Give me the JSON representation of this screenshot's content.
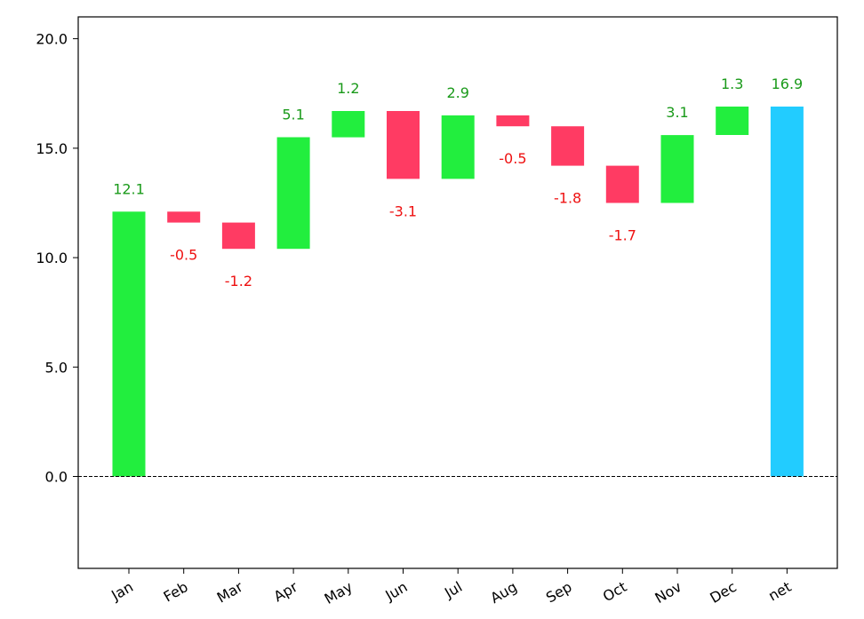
{
  "chart_data": {
    "type": "bar",
    "subtype": "waterfall",
    "title": "",
    "xlabel": "",
    "ylabel": "",
    "categories": [
      "Jan",
      "Feb",
      "Mar",
      "Apr",
      "May",
      "Jun",
      "Jul",
      "Aug",
      "Sep",
      "Oct",
      "Nov",
      "Dec",
      "net"
    ],
    "values": [
      12.1,
      -0.5,
      -1.2,
      5.1,
      1.2,
      -3.1,
      2.9,
      -0.5,
      -1.8,
      -1.7,
      3.1,
      1.3,
      16.9
    ],
    "labels": [
      "12.1",
      "-0.5",
      "-1.2",
      "5.1",
      "1.2",
      "-3.1",
      "2.9",
      "-0.5",
      "-1.8",
      "-1.7",
      "3.1",
      "1.3",
      "16.9"
    ],
    "total_index": 12,
    "ylim": [
      -4.2,
      21.0
    ],
    "yticks": [
      0.0,
      5.0,
      10.0,
      15.0,
      20.0
    ],
    "ytick_labels": [
      "0.0",
      "5.0",
      "10.0",
      "15.0",
      "20.0"
    ],
    "zero_line": "dashed",
    "grid": false,
    "legend": "none",
    "colors": {
      "increase": "#22ee3e",
      "decrease": "#ff3b63",
      "total": "#22ccff",
      "increase_label": "#1a9a1a",
      "decrease_label": "#ee1111",
      "total_label": "#1a9a1a",
      "axis": "#000000"
    }
  }
}
